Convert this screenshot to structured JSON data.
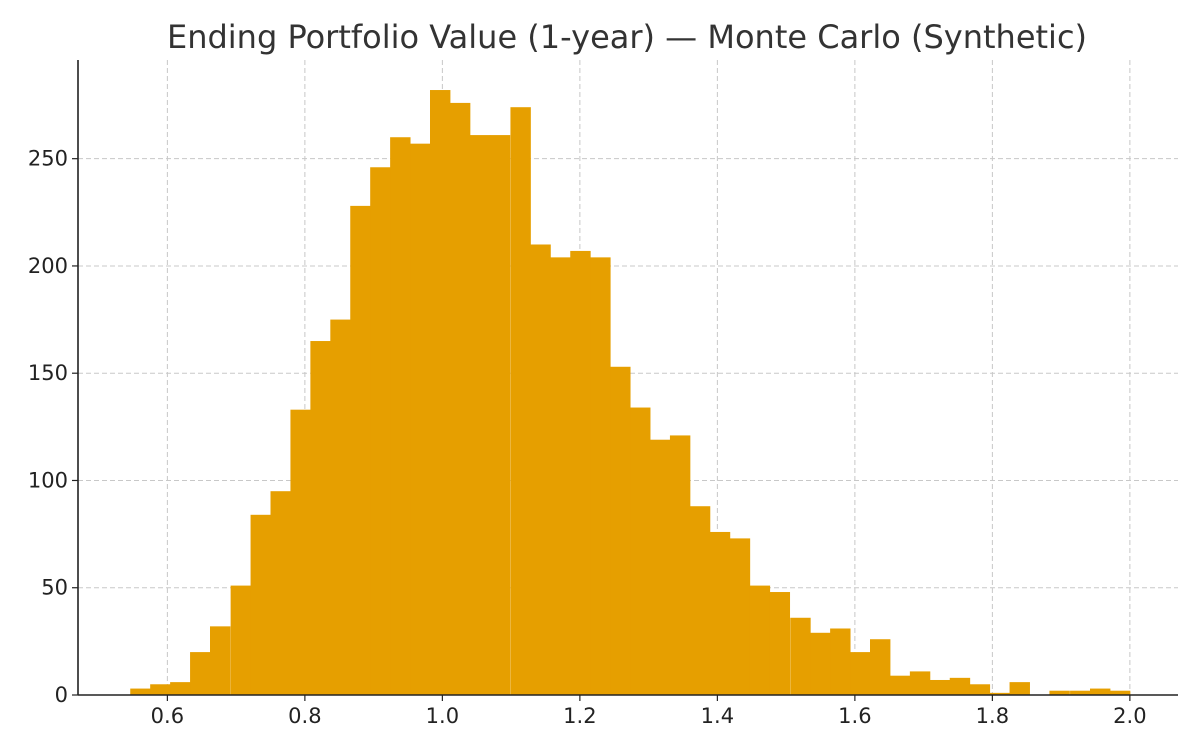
{
  "chart_data": {
    "type": "bar",
    "title": "Ending Portfolio Value (1-year) — Monte Carlo (Synthetic)",
    "xlabel": "",
    "ylabel": "",
    "xlim": [
      0.47,
      2.07
    ],
    "ylim": [
      0,
      296
    ],
    "bin_width": 0.0291,
    "bin_starts": [
      0.546,
      0.575,
      0.604,
      0.633,
      0.662,
      0.692,
      0.721,
      0.75,
      0.779,
      0.808,
      0.837,
      0.866,
      0.895,
      0.924,
      0.953,
      0.982,
      1.011,
      1.04,
      1.069,
      1.099,
      1.128,
      1.157,
      1.186,
      1.215,
      1.244,
      1.273,
      1.302,
      1.331,
      1.36,
      1.389,
      1.418,
      1.447,
      1.476,
      1.506,
      1.535,
      1.564,
      1.593,
      1.622,
      1.651,
      1.68,
      1.709,
      1.738,
      1.767,
      1.796,
      1.825,
      1.854,
      1.883,
      1.913,
      1.942,
      1.971
    ],
    "values": [
      3,
      5,
      6,
      20,
      32,
      51,
      84,
      95,
      133,
      165,
      175,
      228,
      246,
      260,
      257,
      282,
      276,
      261,
      261,
      274,
      210,
      204,
      207,
      204,
      153,
      134,
      119,
      121,
      88,
      76,
      73,
      51,
      48,
      36,
      29,
      31,
      20,
      26,
      9,
      11,
      7,
      8,
      5,
      1,
      6,
      0,
      2,
      2,
      3,
      2
    ],
    "bar_color": "#e69f00",
    "x_ticks": [
      0.6,
      0.8,
      1.0,
      1.2,
      1.4,
      1.6,
      1.8,
      2.0
    ],
    "x_tick_labels": [
      "0.6",
      "0.8",
      "1.0",
      "1.2",
      "1.4",
      "1.6",
      "1.8",
      "2.0"
    ],
    "y_ticks": [
      0,
      50,
      100,
      150,
      200,
      250
    ],
    "y_tick_labels": [
      "0",
      "50",
      "100",
      "150",
      "200",
      "250"
    ],
    "grid": true,
    "legend": "none"
  }
}
